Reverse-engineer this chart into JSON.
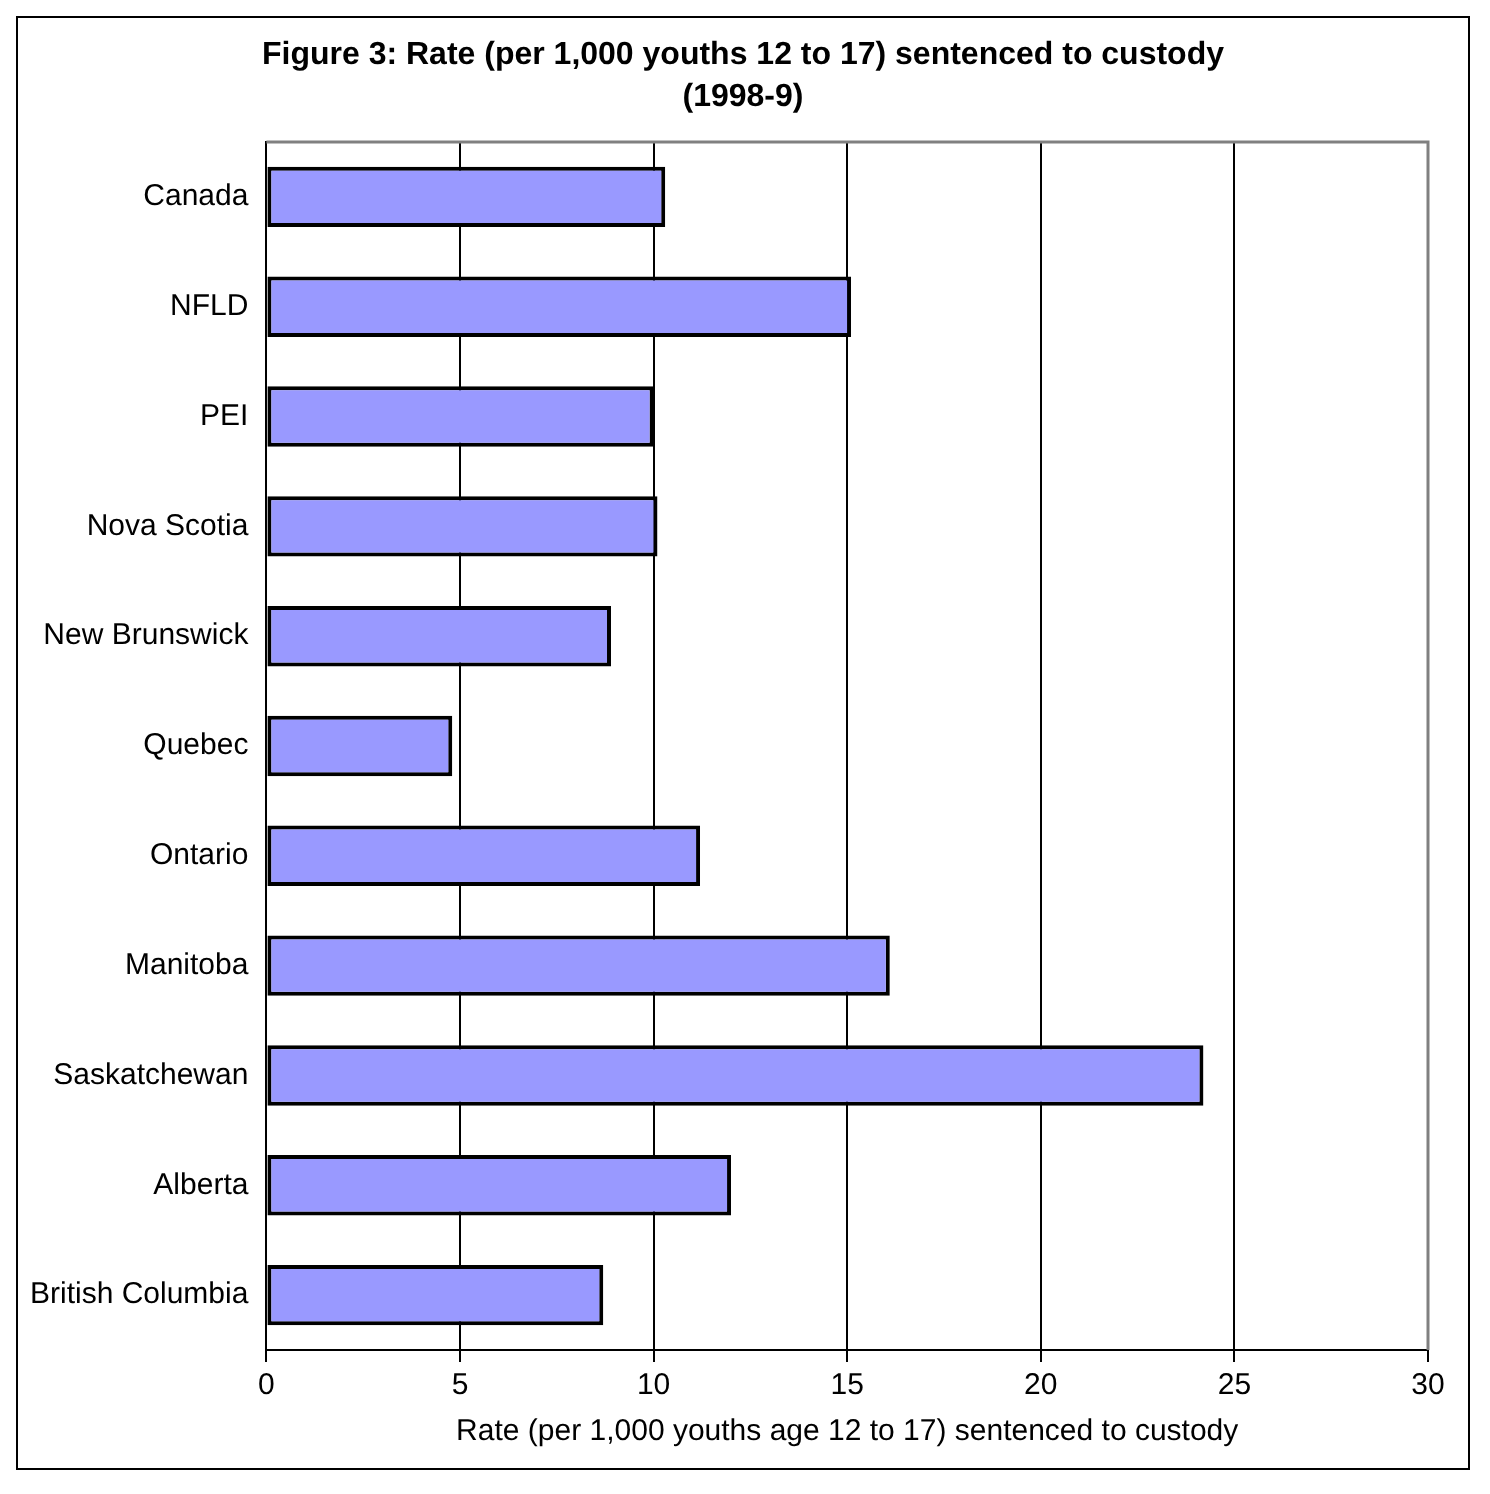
{
  "chart_data": {
    "type": "bar",
    "orientation": "horizontal",
    "title": "Figure 3: Rate (per 1,000 youths 12 to 17) sentenced to custody (1998-9)",
    "xlabel": "Rate (per 1,000 youths age 12 to 17) sentenced to custody",
    "categories": [
      "Canada",
      "NFLD",
      "PEI",
      "Nova Scotia",
      "New Brunswick",
      "Quebec",
      "Ontario",
      "Manitoba",
      "Saskatchewan",
      "Alberta",
      "British Columbia"
    ],
    "values": [
      10.3,
      15.1,
      10.0,
      10.1,
      8.9,
      4.8,
      11.2,
      16.1,
      24.2,
      12.0,
      8.7
    ],
    "color": "#9999ff",
    "xlim": [
      0,
      30
    ],
    "xticks": [
      0,
      5,
      10,
      15,
      20,
      25,
      30
    ],
    "grid": "x",
    "legend": false
  }
}
